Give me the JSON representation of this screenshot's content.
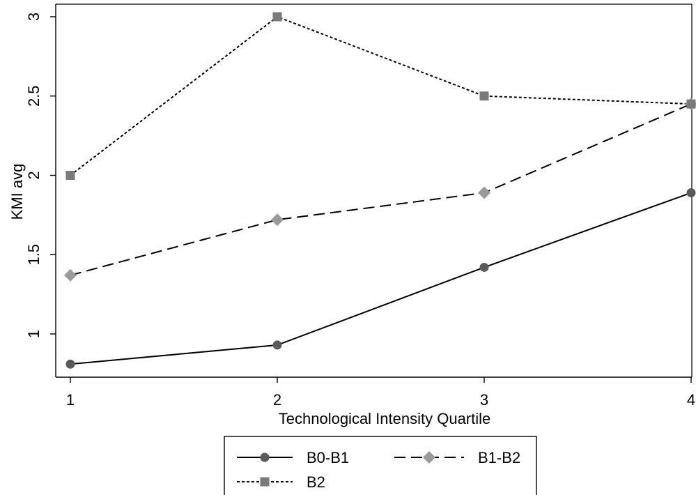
{
  "chart_data": {
    "type": "line",
    "title": "",
    "xlabel": "Technological Intensity Quartile",
    "ylabel": "KMI avg",
    "x": [
      1,
      2,
      3,
      4
    ],
    "xticks": [
      "1",
      "2",
      "3",
      "4"
    ],
    "yticks": [
      "1",
      "1.5",
      "2",
      "2.5",
      "3"
    ],
    "ylim": [
      0.75,
      3.05
    ],
    "grid": false,
    "legend_position": "bottom",
    "series": [
      {
        "name": "B0-B1",
        "values": [
          0.81,
          0.93,
          1.42,
          1.89
        ],
        "line_style": "solid",
        "marker": "circle",
        "color": "#000000",
        "marker_color": "#5a5a5a"
      },
      {
        "name": "B1-B2",
        "values": [
          1.37,
          1.72,
          1.89,
          2.45
        ],
        "line_style": "dashed",
        "marker": "diamond",
        "color": "#000000",
        "marker_color": "#9a9a9a"
      },
      {
        "name": "B2",
        "values": [
          2.0,
          3.0,
          2.5,
          2.45
        ],
        "line_style": "dotted",
        "marker": "square",
        "color": "#000000",
        "marker_color": "#7a7a7a"
      }
    ]
  }
}
